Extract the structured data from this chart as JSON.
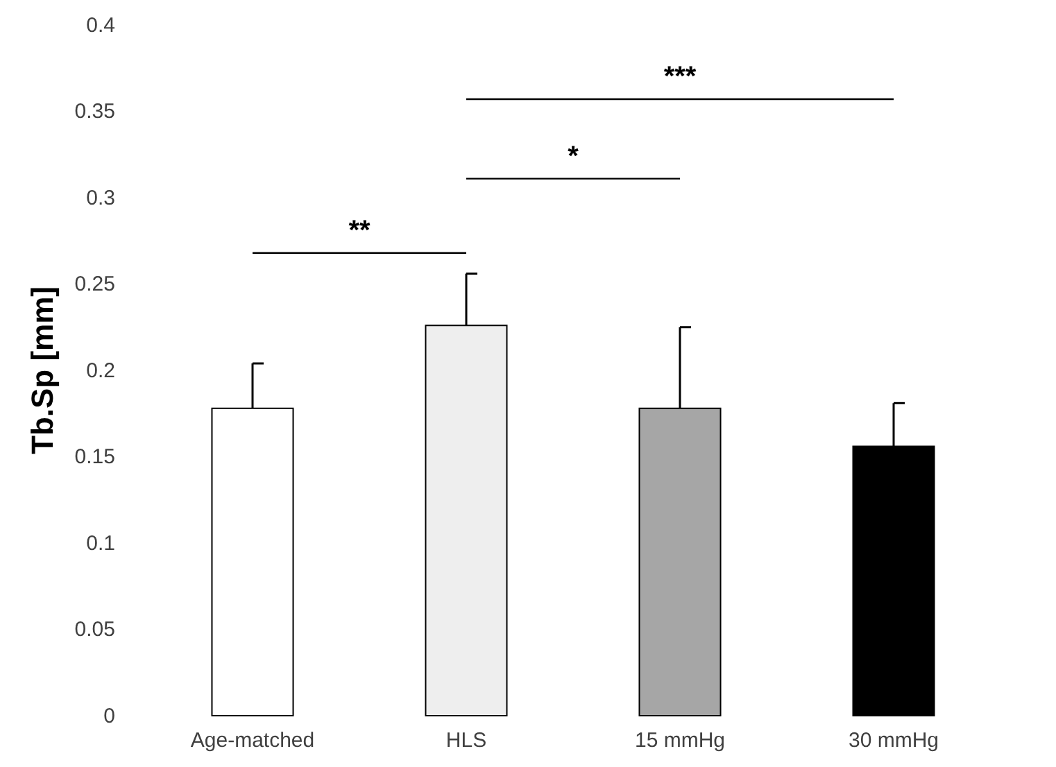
{
  "chart_data": {
    "type": "bar",
    "ylabel": "Tb.Sp [mm]",
    "categories": [
      "Age-matched",
      "HLS",
      "15 mmHg",
      "30 mmHg"
    ],
    "values": [
      0.178,
      0.226,
      0.178,
      0.156
    ],
    "errors": [
      [
        0.178,
        0.204
      ],
      [
        0.226,
        0.256
      ],
      [
        0.178,
        0.225
      ],
      [
        0.156,
        0.181
      ]
    ],
    "colors": [
      "#ffffff",
      "#eeeeee",
      "#a6a6a6",
      "#000000"
    ],
    "ylim": [
      0,
      0.4
    ],
    "yticks": [
      0,
      0.05,
      0.1,
      0.15,
      0.2,
      0.25,
      0.3,
      0.35,
      0.4
    ],
    "annotations": [
      "**",
      "*",
      "***"
    ]
  }
}
